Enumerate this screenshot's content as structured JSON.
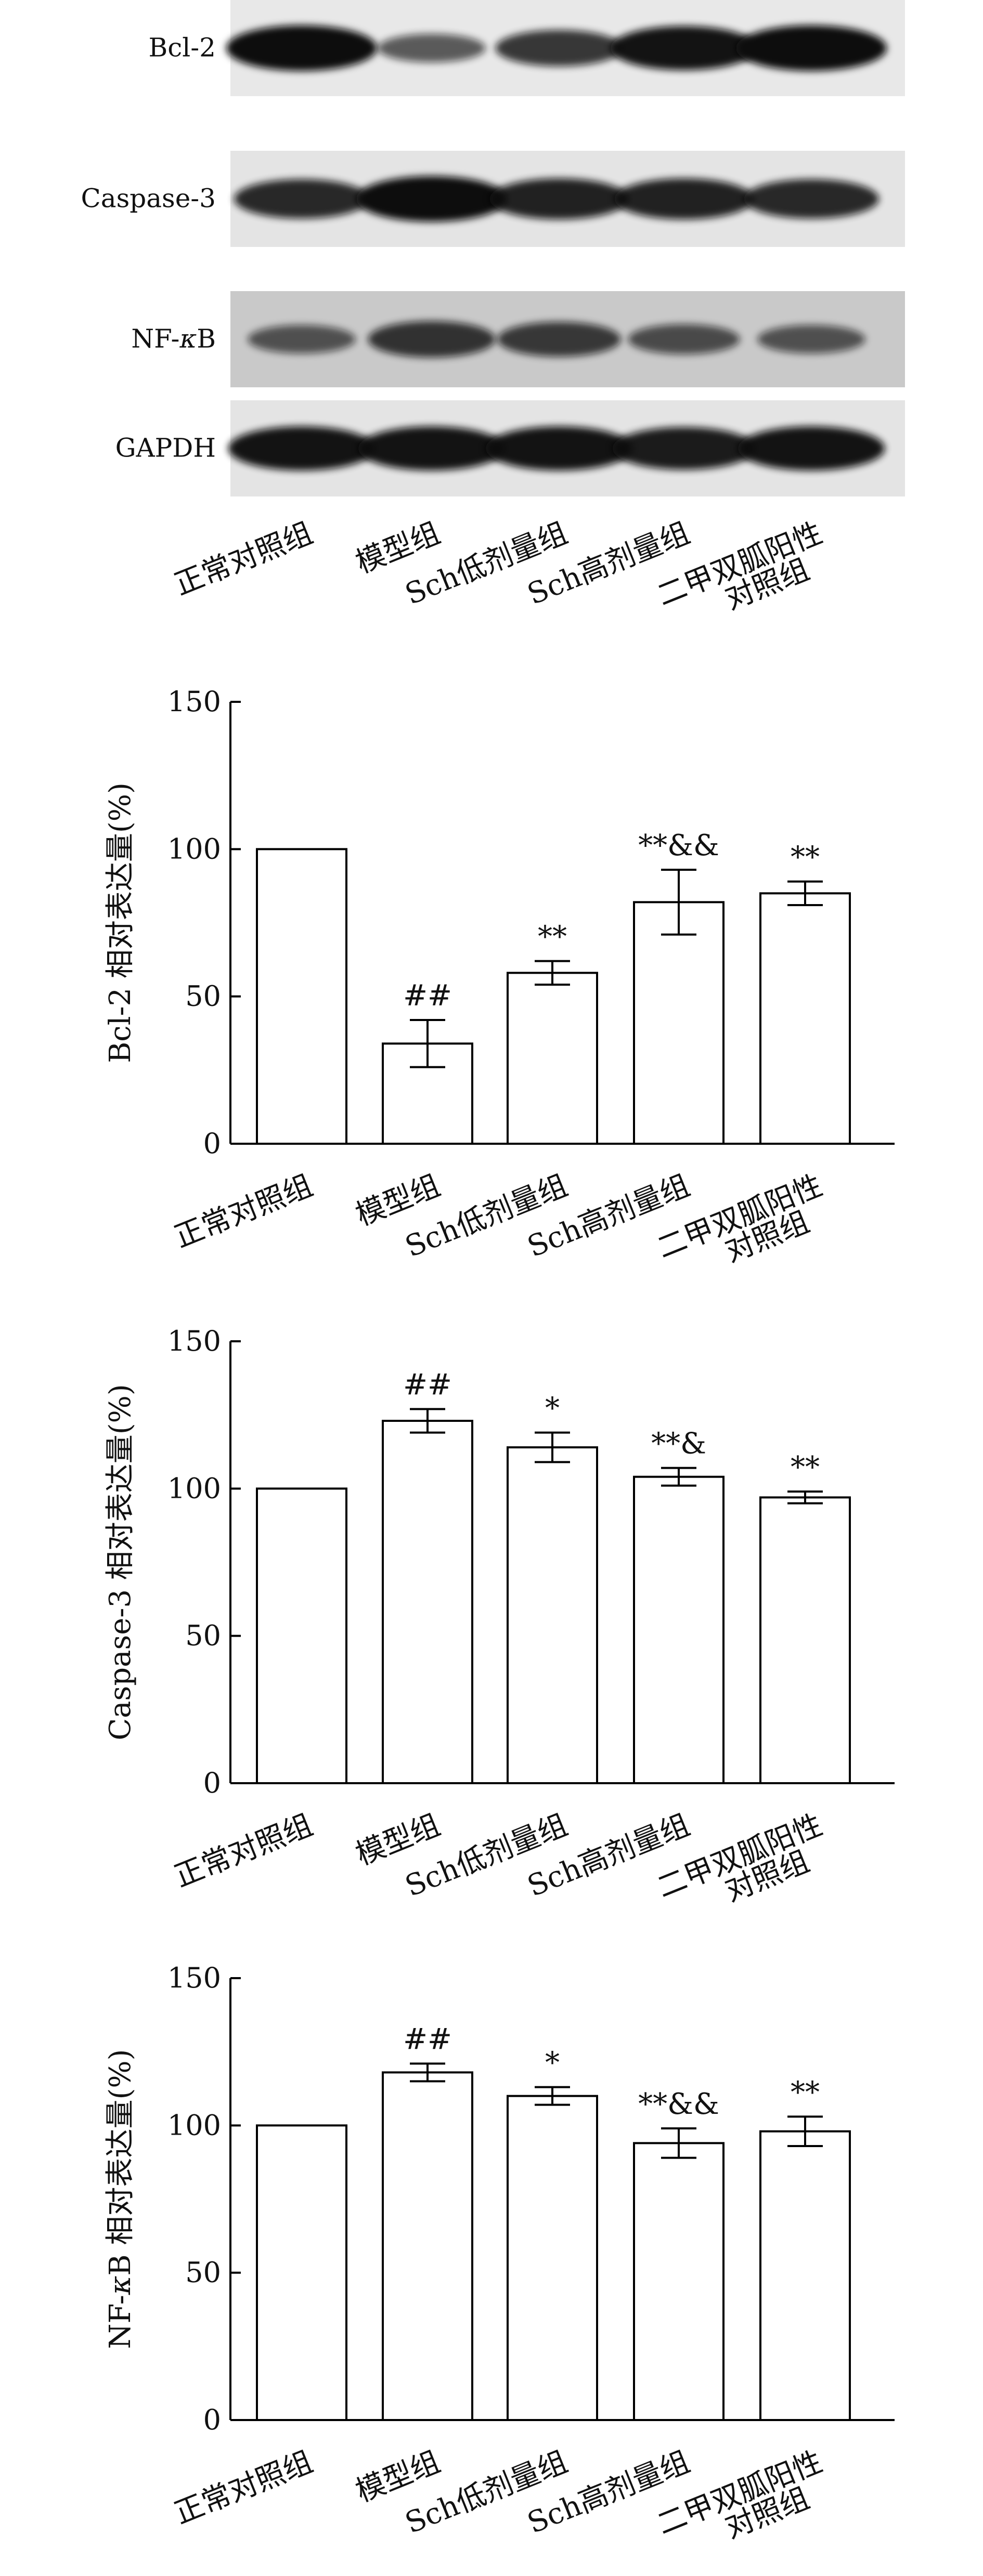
{
  "blot": {
    "proteins": [
      {
        "name": "Bcl-2",
        "display": [
          {
            "t": "Bcl-2"
          }
        ],
        "band_intensity": [
          1.0,
          0.45,
          0.7,
          0.95,
          1.0
        ],
        "background": "#e8e8e8"
      },
      {
        "name": "Caspase-3",
        "display": [
          {
            "t": "Caspase-3"
          }
        ],
        "band_intensity": [
          0.8,
          1.0,
          0.85,
          0.85,
          0.8
        ],
        "background": "#e4e4e4"
      },
      {
        "name": "NF-κB",
        "display": [
          {
            "t": "NF-"
          },
          {
            "t": "κ",
            "italic": true
          },
          {
            "t": "B"
          }
        ],
        "band_intensity": [
          0.45,
          0.7,
          0.65,
          0.5,
          0.45
        ],
        "background": "#c9c9c9"
      },
      {
        "name": "GAPDH",
        "display": [
          {
            "t": "GAPDH"
          }
        ],
        "band_intensity": [
          0.95,
          0.95,
          0.95,
          0.9,
          0.95
        ],
        "background": "#e4e4e4"
      }
    ],
    "lane_labels": [
      [
        "正常对照组"
      ],
      [
        "模型组"
      ],
      [
        "Sch低剂量组"
      ],
      [
        "Sch高剂量组"
      ],
      [
        "二甲双胍阳性",
        "对照组"
      ]
    ],
    "band_color": "#0f0f0f"
  },
  "chart_data": [
    {
      "type": "bar",
      "categories": [
        "正常对照组",
        "模型组",
        "Sch低剂量组",
        "Sch高剂量组",
        "二甲双胍阳性对照组"
      ],
      "category_lines": [
        [
          "正常对照组"
        ],
        [
          "模型组"
        ],
        [
          "Sch低剂量组"
        ],
        [
          "Sch高剂量组"
        ],
        [
          "二甲双胍阳性",
          "对照组"
        ]
      ],
      "values": [
        100,
        34,
        58,
        82,
        85
      ],
      "errors": [
        0,
        8,
        4,
        11,
        4
      ],
      "annotations": [
        "",
        "##",
        "**",
        "**&&",
        "**"
      ],
      "title": "",
      "xlabel": "",
      "ylabel": "Bcl-2 相对表达量(%)",
      "ylabel_parts": [
        {
          "t": "Bcl-2 相对表达量(%)"
        }
      ],
      "ylim": [
        0,
        150
      ],
      "yticks": [
        0,
        50,
        100,
        150
      ],
      "grid": false,
      "bar_color": "#ffffff",
      "edge_color": "#000000"
    },
    {
      "type": "bar",
      "categories": [
        "正常对照组",
        "模型组",
        "Sch低剂量组",
        "Sch高剂量组",
        "二甲双胍阳性对照组"
      ],
      "category_lines": [
        [
          "正常对照组"
        ],
        [
          "模型组"
        ],
        [
          "Sch低剂量组"
        ],
        [
          "Sch高剂量组"
        ],
        [
          "二甲双胍阳性",
          "对照组"
        ]
      ],
      "values": [
        100,
        123,
        114,
        104,
        97
      ],
      "errors": [
        0,
        4,
        5,
        3,
        2
      ],
      "annotations": [
        "",
        "##",
        "*",
        "**&",
        "**"
      ],
      "title": "",
      "xlabel": "",
      "ylabel": "Caspase-3 相对表达量(%)",
      "ylabel_parts": [
        {
          "t": "Caspase-3 相对表达量(%)"
        }
      ],
      "ylim": [
        0,
        150
      ],
      "yticks": [
        0,
        50,
        100,
        150
      ],
      "grid": false,
      "bar_color": "#ffffff",
      "edge_color": "#000000"
    },
    {
      "type": "bar",
      "categories": [
        "正常对照组",
        "模型组",
        "Sch低剂量组",
        "Sch高剂量组",
        "二甲双胍阳性对照组"
      ],
      "category_lines": [
        [
          "正常对照组"
        ],
        [
          "模型组"
        ],
        [
          "Sch低剂量组"
        ],
        [
          "Sch高剂量组"
        ],
        [
          "二甲双胍阳性",
          "对照组"
        ]
      ],
      "values": [
        100,
        118,
        110,
        94,
        98
      ],
      "errors": [
        0,
        3,
        3,
        5,
        5
      ],
      "annotations": [
        "",
        "##",
        "*",
        "**&&",
        "**"
      ],
      "title": "",
      "xlabel": "",
      "ylabel": "NF-κB 相对表达量(%)",
      "ylabel_parts": [
        {
          "t": "NF-"
        },
        {
          "t": "κ",
          "italic": true
        },
        {
          "t": "B 相对表达量(%)"
        }
      ],
      "ylim": [
        0,
        150
      ],
      "yticks": [
        0,
        50,
        100,
        150
      ],
      "grid": false,
      "bar_color": "#ffffff",
      "edge_color": "#000000"
    }
  ]
}
